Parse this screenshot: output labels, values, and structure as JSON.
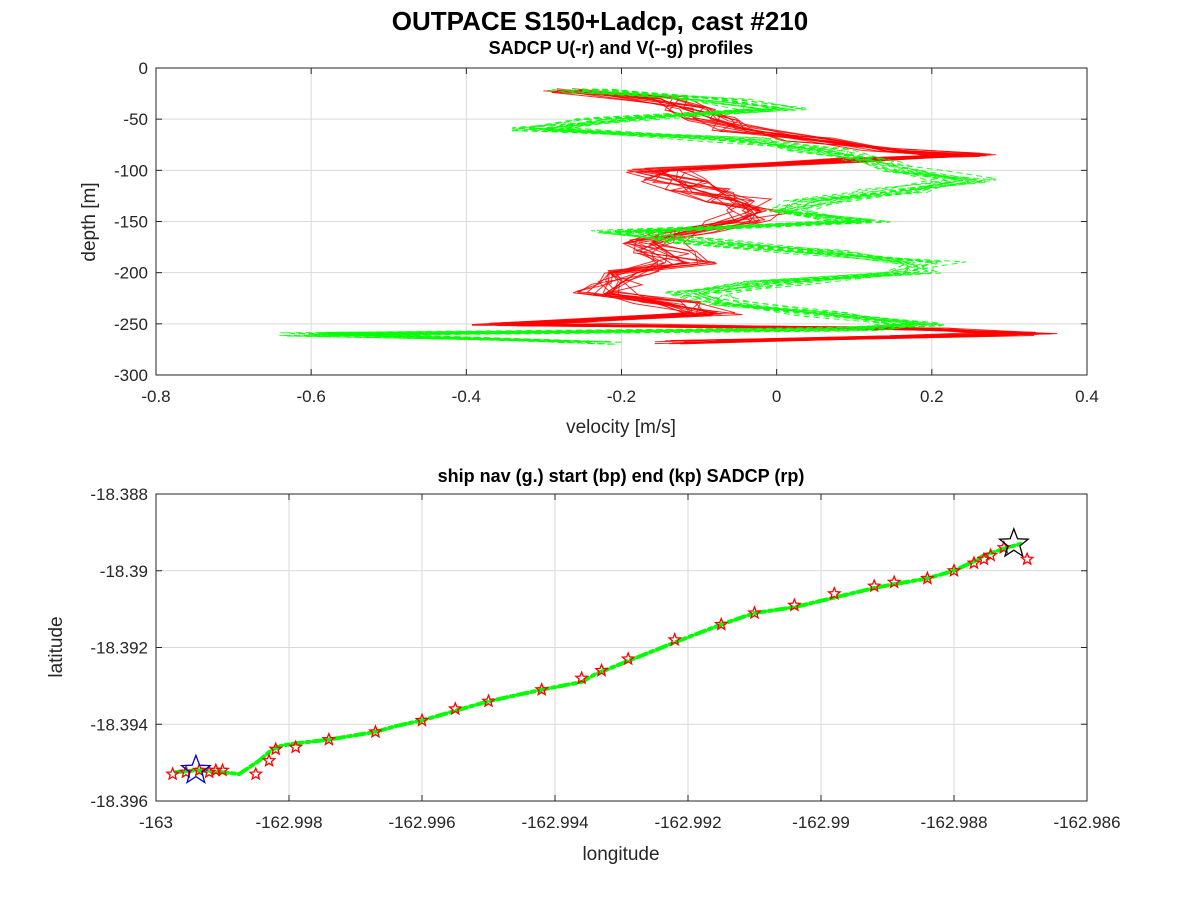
{
  "figure": {
    "title": "OUTPACE S150+Ladcp, cast #210"
  },
  "colors": {
    "u_profile": "#ff0000",
    "v_profile": "#00ff00",
    "start_marker": "#0000cc",
    "end_marker": "#000000",
    "sadcp_marker": "#ff0000",
    "grid": "#d9d9d9"
  },
  "chart_data": [
    {
      "type": "line",
      "title": "SADCP U(-r) and V(--g) profiles",
      "xlabel": "velocity [m/s]",
      "ylabel": "depth [m]",
      "xlim": [
        -0.8,
        0.4
      ],
      "ylim": [
        -300,
        0
      ],
      "xticks": [
        "-0.8",
        "-0.6",
        "-0.4",
        "-0.2",
        "0",
        "0.2",
        "0.4"
      ],
      "yticks": [
        "0",
        "-50",
        "-100",
        "-150",
        "-200",
        "-250",
        "-300"
      ],
      "grid": true,
      "series": [
        {
          "style": "solid-red",
          "depth": [
            -22,
            -30,
            -40,
            -50,
            -60,
            -70,
            -80,
            -85,
            -90,
            -100,
            -110,
            -120,
            -130,
            -140,
            -150,
            -160,
            -170,
            -180,
            -190,
            -200,
            -210,
            -220,
            -230,
            -240,
            -250,
            -255,
            -260,
            -268
          ],
          "velocity": [
            -0.26,
            -0.15,
            -0.12,
            -0.08,
            -0.04,
            0.05,
            0.15,
            0.24,
            0.1,
            -0.15,
            -0.13,
            -0.1,
            -0.05,
            -0.02,
            -0.05,
            -0.12,
            -0.16,
            -0.14,
            -0.12,
            -0.18,
            -0.2,
            -0.22,
            -0.14,
            -0.08,
            -0.35,
            0.2,
            0.32,
            -0.12
          ]
        },
        {
          "style": "dashed-green",
          "depth": [
            -22,
            -30,
            -40,
            -50,
            -60,
            -70,
            -80,
            -90,
            -100,
            -110,
            -120,
            -130,
            -140,
            -150,
            -160,
            -170,
            -180,
            -190,
            -200,
            -210,
            -220,
            -230,
            -240,
            -250,
            -255,
            -260,
            -268
          ],
          "velocity": [
            -0.25,
            -0.08,
            0.0,
            -0.22,
            -0.3,
            -0.05,
            0.05,
            0.12,
            0.18,
            0.24,
            0.15,
            0.05,
            0.02,
            0.12,
            -0.2,
            -0.1,
            0.05,
            0.2,
            0.17,
            0.0,
            -0.1,
            -0.06,
            0.05,
            0.18,
            0.1,
            -0.6,
            -0.24
          ]
        }
      ]
    },
    {
      "type": "scatter",
      "title": "ship nav (g.) start (bp) end (kp) SADCP (rp)",
      "xlabel": "longitude",
      "ylabel": "latitude",
      "xlim": [
        -163,
        -162.986
      ],
      "ylim": [
        -18.396,
        -18.388
      ],
      "xticks": [
        "-163",
        "-162.998",
        "-162.996",
        "-162.994",
        "-162.992",
        "-162.99",
        "-162.988",
        "-162.986"
      ],
      "yticks": [
        "-18.388",
        "-18.39",
        "-18.392",
        "-18.394",
        "-18.396"
      ],
      "grid": true,
      "ship_nav": {
        "lon": [
          -162.9997,
          -162.9994,
          -162.999,
          -162.99875,
          -162.99845,
          -162.99825,
          -162.9981,
          -162.9979,
          -162.9974,
          -162.9967,
          -162.9964,
          -162.996,
          -162.9955,
          -162.995,
          -162.9942,
          -162.9936,
          -162.9934,
          -162.9929,
          -162.9921,
          -162.9915,
          -162.991,
          -162.9904,
          -162.9898,
          -162.9892,
          -162.9889,
          -162.9884,
          -162.988,
          -162.9877,
          -162.98755,
          -162.9872,
          -162.987
        ],
        "lat": [
          -18.39525,
          -18.3952,
          -18.39525,
          -18.3953,
          -18.39495,
          -18.39465,
          -18.39455,
          -18.3945,
          -18.3944,
          -18.3942,
          -18.39405,
          -18.3939,
          -18.39365,
          -18.3934,
          -18.3931,
          -18.3929,
          -18.3927,
          -18.39235,
          -18.3918,
          -18.3914,
          -18.3911,
          -18.39095,
          -18.3907,
          -18.39045,
          -18.39035,
          -18.3902,
          -18.39,
          -18.38975,
          -18.3896,
          -18.3894,
          -18.3893
        ]
      },
      "sadcp": {
        "lon": [
          -162.99975,
          -162.99955,
          -162.99935,
          -162.9992,
          -162.9991,
          -162.999,
          -162.9985,
          -162.9983,
          -162.9982,
          -162.9979,
          -162.9974,
          -162.9967,
          -162.996,
          -162.9955,
          -162.995,
          -162.9942,
          -162.9936,
          -162.9933,
          -162.9929,
          -162.9922,
          -162.9915,
          -162.991,
          -162.9904,
          -162.9898,
          -162.9892,
          -162.9889,
          -162.9884,
          -162.988,
          -162.9877,
          -162.98755,
          -162.98745,
          -162.98725,
          -162.9869
        ],
        "lat": [
          -18.3953,
          -18.39525,
          -18.3952,
          -18.39525,
          -18.3952,
          -18.3952,
          -18.3953,
          -18.39495,
          -18.39465,
          -18.3946,
          -18.3944,
          -18.3942,
          -18.3939,
          -18.3936,
          -18.3934,
          -18.3931,
          -18.3928,
          -18.3926,
          -18.3923,
          -18.3918,
          -18.3914,
          -18.3911,
          -18.3909,
          -18.3906,
          -18.3904,
          -18.3903,
          -18.3902,
          -18.39,
          -18.3898,
          -18.3897,
          -18.3896,
          -18.3894,
          -18.3897
        ]
      },
      "start": {
        "lon": -162.9994,
        "lat": -18.3952
      },
      "end": {
        "lon": -162.9871,
        "lat": -18.3893
      }
    }
  ]
}
